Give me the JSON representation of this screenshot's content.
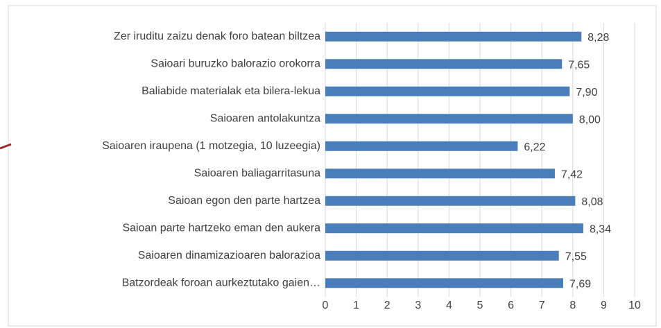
{
  "chart_data": {
    "type": "bar",
    "orientation": "horizontal",
    "categories": [
      "Zer iruditu zaizu denak foro batean biltzea",
      "Saioari buruzko balorazio orokorra",
      "Baliabide materialak eta bilera-lekua",
      "Saioaren antolakuntza",
      "Saioaren iraupena (1 motzegia, 10 luzeegia)",
      "Saioaren baliagarritasuna",
      "Saioan egon den parte hartzea",
      "Saioan parte hartzeko eman den aukera",
      "Saioaren dinamizazioaren balorazioa",
      "Batzordeak foroan aurkeztutako gaien…"
    ],
    "values": [
      8.28,
      7.65,
      7.9,
      8.0,
      6.22,
      7.42,
      8.08,
      8.34,
      7.55,
      7.69
    ],
    "value_labels": [
      "8,28",
      "7,65",
      "7,90",
      "8,00",
      "6,22",
      "7,42",
      "8,08",
      "8,34",
      "7,55",
      "7,69"
    ],
    "color": "#4a7ebb",
    "xlim": [
      0,
      10
    ],
    "xticks": [
      0,
      1,
      2,
      3,
      4,
      5,
      6,
      7,
      8,
      9,
      10
    ],
    "grid": true
  }
}
